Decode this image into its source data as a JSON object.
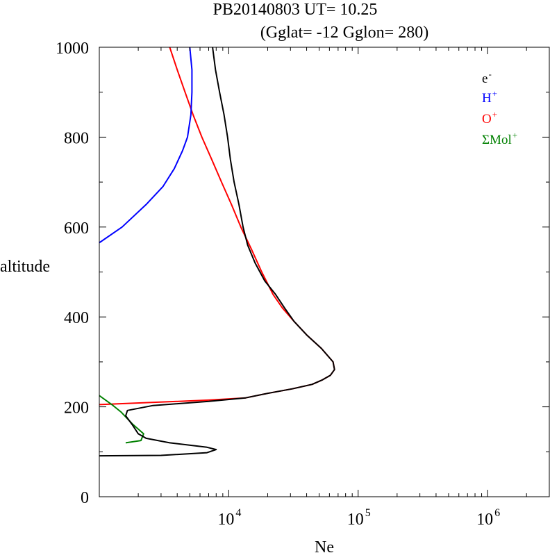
{
  "chart_data": {
    "type": "line",
    "title": "PB20140803   UT=  10.25",
    "subtitle": "(Gglat= -12   Gglon=  280)",
    "xlabel": "Ne",
    "ylabel": "altitude",
    "xscale": "log",
    "xlim": [
      1000,
      3000000
    ],
    "ylim": [
      0,
      1000
    ],
    "yticks": [
      {
        "value": 0,
        "label": "0"
      },
      {
        "value": 200,
        "label": "200"
      },
      {
        "value": 400,
        "label": "400"
      },
      {
        "value": 600,
        "label": "600"
      },
      {
        "value": 800,
        "label": "800"
      },
      {
        "value": 1000,
        "label": "1000"
      }
    ],
    "xticks": [
      {
        "value": 10000,
        "base": "10",
        "exp": "4"
      },
      {
        "value": 100000,
        "base": "10",
        "exp": "5"
      },
      {
        "value": 1000000,
        "base": "10",
        "exp": "6"
      }
    ],
    "legend_position": "top-right",
    "legend": [
      {
        "base": "e",
        "sup": "-",
        "color": "#000000"
      },
      {
        "base": "H",
        "sup": "+",
        "color": "#0000ff"
      },
      {
        "base": "O",
        "sup": "+",
        "color": "#ff0000"
      },
      {
        "base": "ΣMol",
        "sup": "+",
        "color": "#008000"
      }
    ],
    "series": [
      {
        "color": "#ff0000",
        "points": [
          [
            1000,
            205
          ],
          [
            7000,
            215
          ],
          [
            13500,
            220
          ],
          [
            20000,
            230
          ],
          [
            31000,
            240
          ],
          [
            44000,
            250
          ],
          [
            53000,
            260
          ],
          [
            61000,
            270
          ],
          [
            65700,
            283
          ],
          [
            64000,
            300
          ],
          [
            52000,
            330
          ],
          [
            40000,
            360
          ],
          [
            32000,
            390
          ],
          [
            26000,
            420
          ],
          [
            22000,
            450
          ],
          [
            18000,
            500
          ],
          [
            15000,
            550
          ],
          [
            12400,
            600
          ],
          [
            10500,
            650
          ],
          [
            8800,
            700
          ],
          [
            7400,
            750
          ],
          [
            6200,
            800
          ],
          [
            5300,
            850
          ],
          [
            4600,
            900
          ],
          [
            4000,
            950
          ],
          [
            3500,
            1000
          ]
        ]
      },
      {
        "color": "#0000ff",
        "points": [
          [
            1000,
            565
          ],
          [
            1500,
            600
          ],
          [
            2300,
            650
          ],
          [
            3100,
            690
          ],
          [
            3800,
            730
          ],
          [
            4400,
            770
          ],
          [
            4800,
            800
          ],
          [
            5100,
            850
          ],
          [
            5200,
            900
          ],
          [
            5200,
            950
          ],
          [
            5000,
            1000
          ]
        ]
      },
      {
        "color": "#008000",
        "points": [
          [
            1000,
            225
          ],
          [
            1250,
            205
          ],
          [
            1480,
            188
          ],
          [
            1800,
            162
          ],
          [
            2200,
            140
          ],
          [
            2100,
            125
          ],
          [
            1600,
            120
          ]
        ]
      },
      {
        "color": "#000000",
        "points": [
          [
            1000,
            91
          ],
          [
            3000,
            92
          ],
          [
            6800,
            98
          ],
          [
            8000,
            105
          ],
          [
            6800,
            110
          ],
          [
            3500,
            120
          ],
          [
            2300,
            130
          ],
          [
            2000,
            140
          ],
          [
            1800,
            160
          ],
          [
            1600,
            180
          ],
          [
            1650,
            192
          ],
          [
            2600,
            203
          ],
          [
            7000,
            212
          ],
          [
            13500,
            220
          ],
          [
            20000,
            230
          ],
          [
            31000,
            240
          ],
          [
            44000,
            250
          ],
          [
            53000,
            260
          ],
          [
            61000,
            270
          ],
          [
            65700,
            283
          ],
          [
            64000,
            300
          ],
          [
            52000,
            330
          ],
          [
            40000,
            360
          ],
          [
            32000,
            390
          ],
          [
            27000,
            420
          ],
          [
            23000,
            450
          ],
          [
            19000,
            480
          ],
          [
            16000,
            520
          ],
          [
            14000,
            560
          ],
          [
            12900,
            600
          ],
          [
            12000,
            650
          ],
          [
            11000,
            700
          ],
          [
            10300,
            750
          ],
          [
            9800,
            800
          ],
          [
            9200,
            850
          ],
          [
            8500,
            900
          ],
          [
            7900,
            950
          ],
          [
            7500,
            1000
          ]
        ]
      }
    ]
  }
}
